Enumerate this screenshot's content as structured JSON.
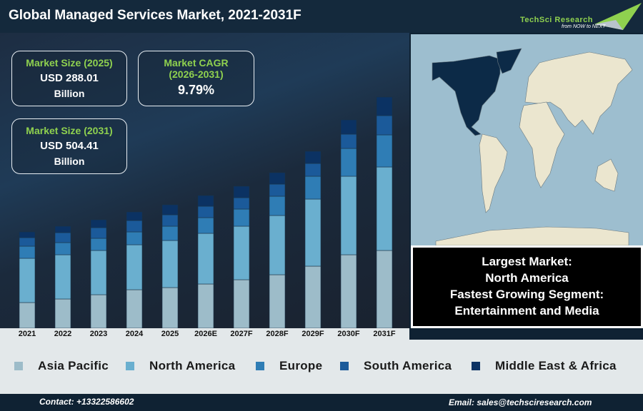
{
  "header": {
    "title": "Global Managed Services Market, 2021-2031F",
    "logo_brand": "TechSci Research",
    "logo_tagline": "from NOW to NEXT"
  },
  "kpis": {
    "size2025": {
      "label": "Market Size (2025)",
      "value": "USD 288.01",
      "unit": "Billion"
    },
    "cagr": {
      "label": "Market CAGR",
      "period": "(2026-2031)",
      "value": "9.79%"
    },
    "size2031": {
      "label": "Market Size (2031)",
      "value": "USD 504.41",
      "unit": "Billion"
    }
  },
  "info": {
    "line1": "Largest Market:",
    "line2": "North America",
    "line3": "Fastest Growing Segment:",
    "line4": "Entertainment and Media"
  },
  "map": {
    "highlighted_region": "North America",
    "highlight_color": "#0c2a47",
    "land_color": "#ebe6cf",
    "ocean_color": "#9dbecf"
  },
  "footer": {
    "contact": "Contact: +13322586602",
    "email": "Email: sales@techsciresearch.com"
  },
  "chart_data": {
    "type": "bar",
    "stacked": true,
    "title": "Global Managed Services Market, 2021-2031F",
    "categories": [
      "2021",
      "2022",
      "2023",
      "2024",
      "2025",
      "2026E",
      "2027F",
      "2028F",
      "2029F",
      "2030F",
      "2031F"
    ],
    "series": [
      {
        "name": "Asia Pacific",
        "color": "#9dbcc9",
        "values": [
          36,
          41,
          47,
          54,
          57,
          62,
          68,
          75,
          87,
          103,
          109
        ]
      },
      {
        "name": "North America",
        "color": "#6aafcf",
        "values": [
          62,
          62,
          62,
          63,
          66,
          71,
          75,
          83,
          94,
          110,
          117
        ]
      },
      {
        "name": "Europe",
        "color": "#2f7db5",
        "values": [
          17,
          17,
          17,
          18,
          20,
          22,
          24,
          27,
          32,
          39,
          45
        ]
      },
      {
        "name": "South America",
        "color": "#1b5a9a",
        "values": [
          12,
          14,
          15,
          16,
          16,
          16,
          16,
          17,
          18,
          20,
          27
        ]
      },
      {
        "name": "Middle East & Africa",
        "color": "#0b3263",
        "values": [
          8,
          9,
          11,
          12,
          14,
          15,
          16,
          16,
          17,
          20,
          26
        ]
      }
    ],
    "legend": "bottom",
    "grid": false,
    "yaxis_visible": false
  }
}
